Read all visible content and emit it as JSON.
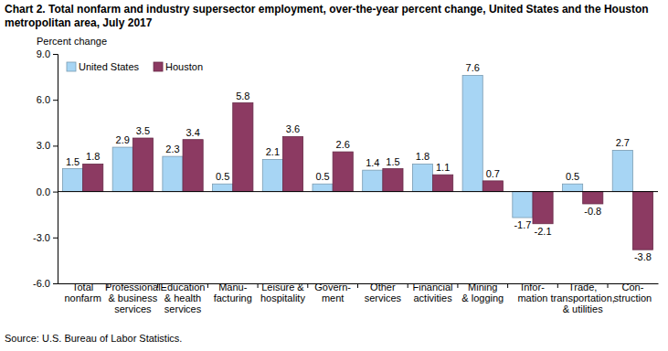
{
  "chart_data": {
    "type": "bar",
    "title": "Chart 2. Total nonfarm and industry supersector employment, over-the-year percent change, United States and the Houston\nmetropolitan area, July 2017",
    "ylabel": "Percent change",
    "source": "Source: U.S. Bureau of Labor Statistics.",
    "categories": [
      "Total\nnonfarm",
      "Professional\n& business\nservices",
      "Education\n& health\nservices",
      "Manu-\nfacturing",
      "Leisure &\nhospitality",
      "Govern-\nment",
      "Other\nservices",
      "Financial\nactivities",
      "Mining\n& logging",
      "Infor-\nmation",
      "Trade,\ntransportation,\n& utilities",
      "Con-\nstruction"
    ],
    "series": [
      {
        "name": "United States",
        "color": "#a7d5f4",
        "values": [
          1.5,
          2.9,
          2.3,
          0.5,
          2.1,
          0.5,
          1.4,
          1.8,
          7.6,
          -1.7,
          0.5,
          2.7
        ]
      },
      {
        "name": "Houston",
        "color": "#8c3a62",
        "values": [
          1.8,
          3.5,
          3.4,
          5.8,
          3.6,
          2.6,
          1.5,
          1.1,
          0.7,
          -2.1,
          -0.8,
          -3.8
        ]
      }
    ],
    "ylim": [
      -6,
      9
    ],
    "yticks": [
      {
        "value": 9,
        "label": "9.0"
      },
      {
        "value": 6,
        "label": "6.0"
      },
      {
        "value": 3,
        "label": "3.0"
      },
      {
        "value": 0,
        "label": "0.0"
      },
      {
        "value": -3,
        "label": "-3.0"
      },
      {
        "value": -6,
        "label": "-6.0"
      }
    ],
    "grid": false,
    "legend": "upper left",
    "data_labels": true
  }
}
